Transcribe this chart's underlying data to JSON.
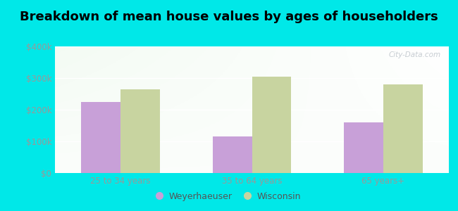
{
  "title": "Breakdown of mean house values by ages of householders",
  "categories": [
    "25 to 34 years",
    "35 to 64 years",
    "65 years+"
  ],
  "weyerhaeuser_values": [
    225000,
    115000,
    160000
  ],
  "wisconsin_values": [
    265000,
    305000,
    280000
  ],
  "weyerhaeuser_color": "#c8a0d8",
  "wisconsin_color": "#c8d4a0",
  "ylim": [
    0,
    400000
  ],
  "yticks": [
    0,
    100000,
    200000,
    300000,
    400000
  ],
  "ytick_labels": [
    "$0",
    "$100k",
    "$200k",
    "$300k",
    "$400k"
  ],
  "background_color": "#00e8e8",
  "legend_weyerhaeuser": "Weyerhaeuser",
  "legend_wisconsin": "Wisconsin",
  "bar_width": 0.3,
  "title_fontsize": 13,
  "watermark": "City-Data.com"
}
